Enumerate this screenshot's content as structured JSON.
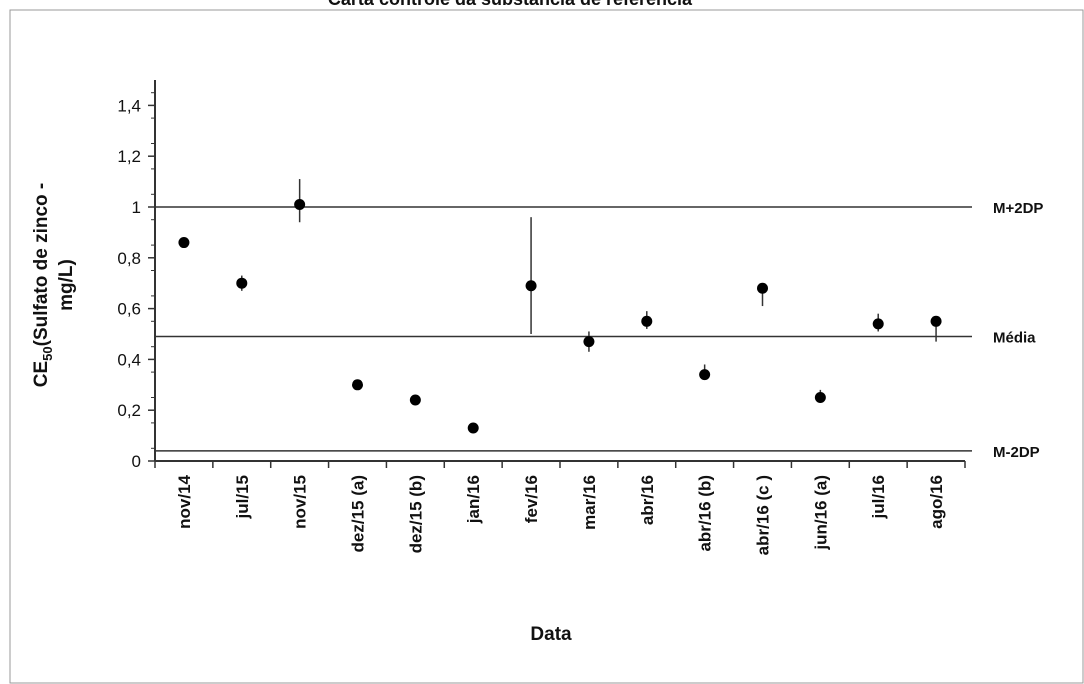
{
  "chart_data": {
    "type": "scatter",
    "title": "Carta controle da substância de referência",
    "xlabel": "Data",
    "ylabel": {
      "prefix": "CE",
      "subscript": "50",
      "line1_rest": "(Sulfato de zinco -",
      "line2": "mg/L)"
    },
    "ylim": [
      0,
      1.5
    ],
    "yticks": [
      "0",
      "0,2",
      "0,4",
      "0,6",
      "0,8",
      "1",
      "1,2",
      "1,4"
    ],
    "ytick_values": [
      0,
      0.2,
      0.4,
      0.6,
      0.8,
      1.0,
      1.2,
      1.4
    ],
    "grid": false,
    "categories": [
      "nov/14",
      "jul/15",
      "nov/15",
      "dez/15 (a)",
      "dez/15 (b)",
      "jan/16",
      "fev/16",
      "mar/16",
      "abr/16",
      "abr/16 (b)",
      "abr/16 (c )",
      "jun/16 (a)",
      "jul/16",
      "ago/16"
    ],
    "series": [
      {
        "values": [
          0.86,
          0.7,
          1.01,
          0.3,
          0.24,
          0.13,
          0.69,
          0.47,
          0.55,
          0.34,
          0.68,
          0.25,
          0.54,
          0.55
        ],
        "err_low": [
          0.85,
          0.67,
          0.94,
          0.3,
          0.24,
          0.13,
          0.5,
          0.43,
          0.52,
          0.32,
          0.61,
          0.23,
          0.51,
          0.47
        ],
        "err_high": [
          0.87,
          0.73,
          1.11,
          0.3,
          0.24,
          0.13,
          0.96,
          0.51,
          0.59,
          0.38,
          0.69,
          0.28,
          0.58,
          0.56
        ]
      }
    ],
    "reference_lines": [
      {
        "label": "M+2DP",
        "value": 1.0
      },
      {
        "label": "Média",
        "value": 0.49
      },
      {
        "label": "M-2DP",
        "value": 0.04
      }
    ],
    "colors": {
      "marker": "#000000",
      "line": "#333333",
      "frame": "#999999"
    }
  }
}
